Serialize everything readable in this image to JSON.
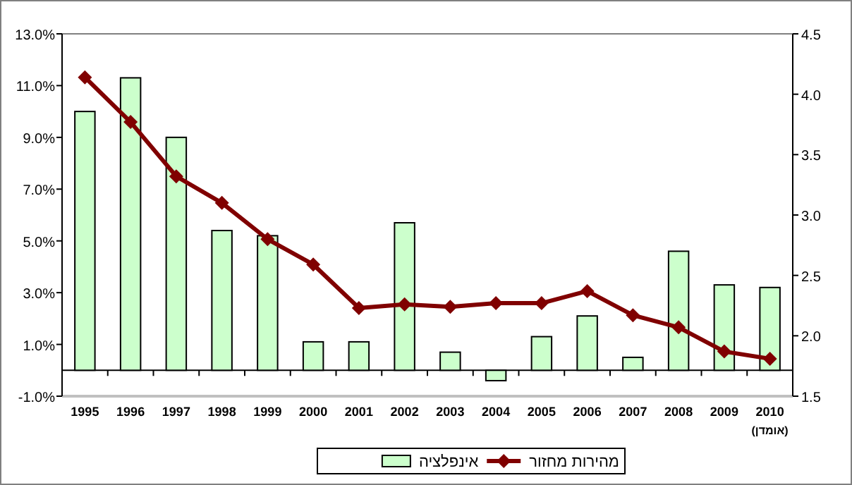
{
  "chart_data": {
    "type": "bar",
    "categories": [
      "1995",
      "1996",
      "1997",
      "1998",
      "1999",
      "2000",
      "2001",
      "2002",
      "2003",
      "2004",
      "2005",
      "2006",
      "2007",
      "2008",
      "2009",
      "2010"
    ],
    "series": [
      {
        "name": "אינפלציה",
        "color": "#ccffcc",
        "values": [
          10.0,
          11.3,
          9.0,
          5.4,
          5.2,
          1.1,
          1.1,
          5.7,
          0.7,
          -0.4,
          1.3,
          2.1,
          0.5,
          4.6,
          3.3,
          3.2
        ]
      },
      {
        "name": "מהירות מחזור",
        "type": "line",
        "axis": "y2",
        "color": "#800000",
        "marker": "diamond",
        "values": [
          4.14,
          3.77,
          3.32,
          3.1,
          2.8,
          2.59,
          2.23,
          2.26,
          2.24,
          2.27,
          2.27,
          2.37,
          2.17,
          2.07,
          1.87,
          1.81
        ]
      }
    ],
    "ylim": [
      -1,
      13
    ],
    "yticks": [
      {
        "value": -1,
        "label": "-1.0%"
      },
      {
        "value": 1,
        "label": "1.0%"
      },
      {
        "value": 3,
        "label": "3.0%"
      },
      {
        "value": 5,
        "label": "5.0%"
      },
      {
        "value": 7,
        "label": "7.0%"
      },
      {
        "value": 9,
        "label": "9.0%"
      },
      {
        "value": 11,
        "label": "11.0%"
      },
      {
        "value": 13,
        "label": "13.0%"
      }
    ],
    "y2lim": [
      1.5,
      4.5
    ],
    "y2ticks": [
      1.5,
      {
        "value": 2,
        "label": "2.0"
      },
      2.5,
      {
        "value": 3,
        "label": "3.0"
      },
      3.5,
      {
        "value": 4,
        "label": "4.0"
      },
      4.5
    ],
    "annotations": [
      "(אומדן)"
    ],
    "legend": "bottom",
    "grid": false
  }
}
